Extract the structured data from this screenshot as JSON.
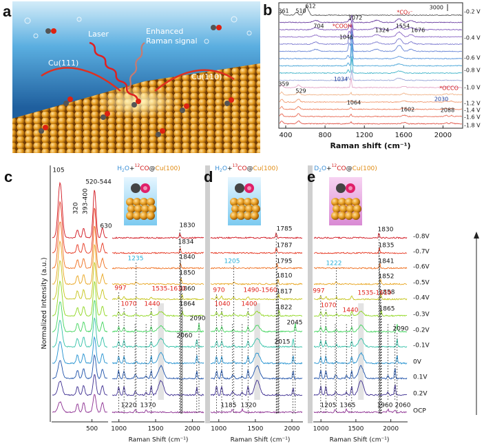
{
  "panel_a": {
    "label": "a",
    "laser": "Laser",
    "signal": [
      "Enhanced",
      "Raman signal"
    ],
    "facet_left": "Cu(111)",
    "facet_right": "Cu(110)"
  },
  "panel_b": {
    "label": "b",
    "x_label": "Raman shift (cm⁻¹)",
    "xlim": [
      330,
      2200
    ],
    "xticks": [
      400,
      800,
      1200,
      1600,
      2000
    ],
    "scale_bar": "3000",
    "potentials": [
      "-0.2 V",
      "-0.4 V",
      "-0.6 V",
      "-0.8 V",
      "-1.0 V",
      "-1.2 V",
      "-1.4 V",
      "-1.6 V",
      "-1.8 V"
    ],
    "peaks": [
      361,
      510,
      612,
      704,
      1072,
      1324,
      1554,
      1676,
      1046,
      1034,
      359,
      529,
      1064,
      1602,
      2030,
      2088
    ],
    "species": [
      "*COOH",
      "*CO₂⁻",
      "*OCCO"
    ]
  },
  "panels_lower": {
    "y_label": "Normalized Intensity (a.u.)",
    "x_label": "Raman Shift (cm⁻¹)",
    "potentials": [
      "-0.8V",
      "-0.7V",
      "-0.6V",
      "-0.5V",
      "-0.4V",
      "-0.3V",
      "-0.2V",
      "-0.1V",
      "0V",
      "0.1V",
      "0.2V",
      "OCP"
    ],
    "low": {
      "xlim": [
        0,
        700
      ],
      "xticks": [
        500
      ],
      "peaks": [
        105,
        320,
        "393-400",
        "520-544",
        630
      ]
    },
    "c": {
      "label": "c",
      "title": [
        "H",
        "2",
        "O",
        "+",
        "12",
        "CO",
        "@",
        "Cu(100)"
      ],
      "xlim": [
        900,
        2165
      ],
      "xticks": [
        1000,
        1500,
        2000
      ],
      "peaks": [
        1830,
        1834,
        1840,
        1850,
        1860,
        1864,
        2090,
        2060,
        1235,
        997,
        "1535-1610",
        1070,
        1440,
        1220,
        1370
      ]
    },
    "d": {
      "label": "d",
      "title": [
        "H",
        "2",
        "O",
        "+",
        "13",
        "CO",
        "@",
        "Cu(100)"
      ],
      "xlim": [
        880,
        2150
      ],
      "xticks": [
        1000,
        1500,
        2000
      ],
      "peaks": [
        1785,
        1787,
        1795,
        1810,
        1817,
        1822,
        2045,
        2015,
        1205,
        970,
        "1490-1560",
        1040,
        1400,
        1185,
        1320
      ]
    },
    "e": {
      "label": "e",
      "title": [
        "D",
        "2",
        "O",
        "+",
        "12",
        "CO",
        "@",
        "Cu(100)"
      ],
      "xlim": [
        890,
        2240
      ],
      "xticks": [
        1000,
        1500,
        2000
      ],
      "peaks": [
        1830,
        1835,
        1841,
        1852,
        1858,
        1865,
        2090,
        1222,
        997,
        "1535-1610",
        1070,
        1440,
        1205,
        1365,
        1960,
        2060
      ]
    }
  }
}
